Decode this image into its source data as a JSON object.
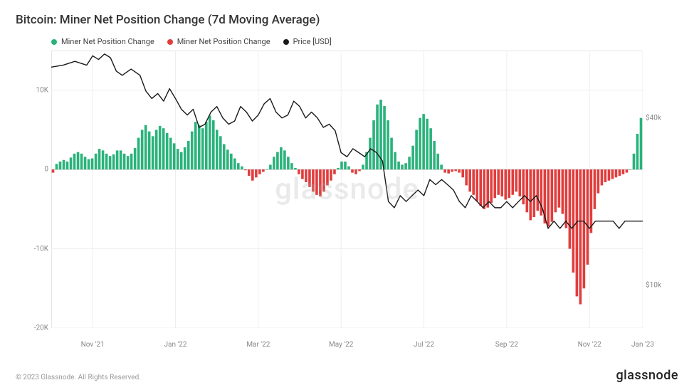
{
  "title": "Bitcoin: Miner Net Position Change (7d Moving Average)",
  "legend": {
    "pos": {
      "label": "Miner Net Position Change",
      "color": "#2ab27b"
    },
    "neg": {
      "label": "Miner Net Position Change",
      "color": "#e03d3d"
    },
    "price": {
      "label": "Price [USD]",
      "color": "#1a1a1a"
    }
  },
  "watermark": "glassnode",
  "copyright": "© 2023 Glassnode. All Rights Reserved.",
  "brand": "glassnode",
  "chart": {
    "type": "bar+line",
    "background_color": "#ffffff",
    "grid_color": "#eeeeee",
    "axis_color": "#cccccc",
    "left_axis": {
      "min": -20,
      "max": 15,
      "ticks": [
        10,
        0,
        -10,
        -20
      ],
      "tick_labels": [
        "10K",
        "0",
        "-10K",
        "-20K"
      ]
    },
    "right_axis": {
      "min": 7,
      "max": 70,
      "ticks": [
        40,
        10
      ],
      "tick_labels": [
        "$40k",
        "$10k"
      ],
      "scale": "log-approx"
    },
    "x_axis": {
      "ticks": [
        0.07,
        0.21,
        0.35,
        0.49,
        0.63,
        0.77,
        0.91,
        1.0
      ],
      "labels": [
        "Nov '21",
        "Jan '22",
        "Mar '22",
        "May '22",
        "Jul '22",
        "Sep '22",
        "Nov '22",
        "Jan '23"
      ]
    },
    "bars": [
      -0.4,
      0.7,
      1.0,
      1.2,
      1.0,
      1.5,
      2.0,
      2.2,
      2.0,
      1.6,
      1.3,
      1.4,
      2.0,
      2.6,
      2.4,
      2.0,
      1.7,
      1.9,
      2.4,
      2.4,
      2.0,
      1.7,
      2.0,
      2.7,
      4.0,
      5.0,
      5.6,
      4.8,
      4.2,
      5.0,
      5.5,
      5.2,
      4.6,
      4.0,
      3.3,
      2.6,
      2.2,
      2.8,
      3.6,
      4.8,
      6.0,
      5.6,
      5.2,
      6.0,
      6.8,
      6.2,
      5.0,
      4.2,
      3.2,
      2.5,
      2.0,
      1.4,
      0.8,
      0.4,
      -0.1,
      -0.8,
      -1.4,
      -1.0,
      -0.6,
      -0.3,
      0.0,
      0.6,
      1.6,
      2.2,
      2.8,
      2.4,
      1.6,
      0.8,
      0.2,
      -0.6,
      -1.2,
      -1.6,
      -2.2,
      -2.8,
      -3.2,
      -3.4,
      -2.8,
      -2.0,
      -1.4,
      -0.6,
      0.2,
      1.0,
      1.0,
      0.4,
      -0.4,
      -0.6,
      -0.2,
      0.6,
      2.2,
      4.0,
      6.2,
      8.2,
      8.8,
      8.0,
      6.2,
      4.0,
      2.2,
      1.0,
      0.6,
      0.8,
      1.6,
      3.0,
      5.0,
      6.5,
      7.0,
      6.4,
      5.2,
      3.6,
      2.0,
      0.6,
      -0.4,
      -0.5,
      -0.3,
      -0.2,
      -0.4,
      -1.0,
      -2.0,
      -2.8,
      -3.2,
      -4.0,
      -4.6,
      -5.0,
      -4.8,
      -4.2,
      -3.6,
      -3.2,
      -3.4,
      -3.8,
      -3.6,
      -3.2,
      -2.8,
      -3.4,
      -4.4,
      -5.4,
      -6.4,
      -6.0,
      -5.2,
      -5.8,
      -6.8,
      -7.2,
      -6.6,
      -5.4,
      -4.8,
      -5.6,
      -7.4,
      -10.0,
      -13.0,
      -16.0,
      -17.0,
      -15.0,
      -12.0,
      -8.0,
      -5.0,
      -3.0,
      -2.0,
      -1.6,
      -1.4,
      -1.2,
      -1.0,
      -0.8,
      -0.6,
      -0.4,
      0.0,
      2.0,
      4.5,
      6.5
    ],
    "bar_colors": {
      "positive": "#2ab27b",
      "negative": "#e03d3d"
    },
    "bar_width_ratio": 0.72,
    "price_line": {
      "color": "#1a1a1a",
      "width": 1.4,
      "points": [
        [
          0.0,
          61
        ],
        [
          0.02,
          62
        ],
        [
          0.04,
          64
        ],
        [
          0.06,
          62
        ],
        [
          0.07,
          67
        ],
        [
          0.08,
          65
        ],
        [
          0.09,
          68
        ],
        [
          0.1,
          66
        ],
        [
          0.11,
          59
        ],
        [
          0.12,
          57
        ],
        [
          0.135,
          60
        ],
        [
          0.15,
          57
        ],
        [
          0.16,
          50
        ],
        [
          0.17,
          47
        ],
        [
          0.18,
          49
        ],
        [
          0.19,
          46
        ],
        [
          0.2,
          51
        ],
        [
          0.21,
          47
        ],
        [
          0.22,
          43
        ],
        [
          0.23,
          41
        ],
        [
          0.24,
          43
        ],
        [
          0.25,
          37
        ],
        [
          0.26,
          38
        ],
        [
          0.27,
          42
        ],
        [
          0.28,
          44
        ],
        [
          0.29,
          40
        ],
        [
          0.3,
          38
        ],
        [
          0.31,
          39
        ],
        [
          0.32,
          44
        ],
        [
          0.33,
          42
        ],
        [
          0.34,
          39
        ],
        [
          0.35,
          41
        ],
        [
          0.36,
          45
        ],
        [
          0.37,
          47
        ],
        [
          0.38,
          42
        ],
        [
          0.39,
          40
        ],
        [
          0.4,
          41
        ],
        [
          0.41,
          46
        ],
        [
          0.42,
          44
        ],
        [
          0.43,
          40
        ],
        [
          0.44,
          42
        ],
        [
          0.45,
          40
        ],
        [
          0.46,
          37
        ],
        [
          0.47,
          38
        ],
        [
          0.48,
          36
        ],
        [
          0.49,
          30
        ],
        [
          0.5,
          29
        ],
        [
          0.51,
          31
        ],
        [
          0.52,
          30
        ],
        [
          0.53,
          29
        ],
        [
          0.54,
          31
        ],
        [
          0.55,
          30
        ],
        [
          0.56,
          28
        ],
        [
          0.57,
          20
        ],
        [
          0.58,
          19
        ],
        [
          0.59,
          21
        ],
        [
          0.6,
          20
        ],
        [
          0.61,
          21
        ],
        [
          0.62,
          22
        ],
        [
          0.63,
          21
        ],
        [
          0.64,
          24
        ],
        [
          0.65,
          23
        ],
        [
          0.66,
          24
        ],
        [
          0.67,
          23
        ],
        [
          0.68,
          22
        ],
        [
          0.69,
          20
        ],
        [
          0.7,
          19
        ],
        [
          0.71,
          21
        ],
        [
          0.72,
          20
        ],
        [
          0.73,
          19
        ],
        [
          0.74,
          20
        ],
        [
          0.75,
          19
        ],
        [
          0.76,
          19
        ],
        [
          0.77,
          20
        ],
        [
          0.78,
          19
        ],
        [
          0.79,
          20
        ],
        [
          0.8,
          21
        ],
        [
          0.81,
          20
        ],
        [
          0.82,
          21
        ],
        [
          0.83,
          19
        ],
        [
          0.84,
          16
        ],
        [
          0.85,
          17
        ],
        [
          0.86,
          16
        ],
        [
          0.87,
          17
        ],
        [
          0.88,
          16
        ],
        [
          0.89,
          17
        ],
        [
          0.9,
          17
        ],
        [
          0.91,
          16
        ],
        [
          0.92,
          17
        ],
        [
          0.93,
          17
        ],
        [
          0.94,
          17
        ],
        [
          0.95,
          17
        ],
        [
          0.96,
          16
        ],
        [
          0.97,
          17
        ],
        [
          0.98,
          17
        ],
        [
          0.995,
          17
        ],
        [
          1.0,
          17
        ]
      ]
    }
  }
}
